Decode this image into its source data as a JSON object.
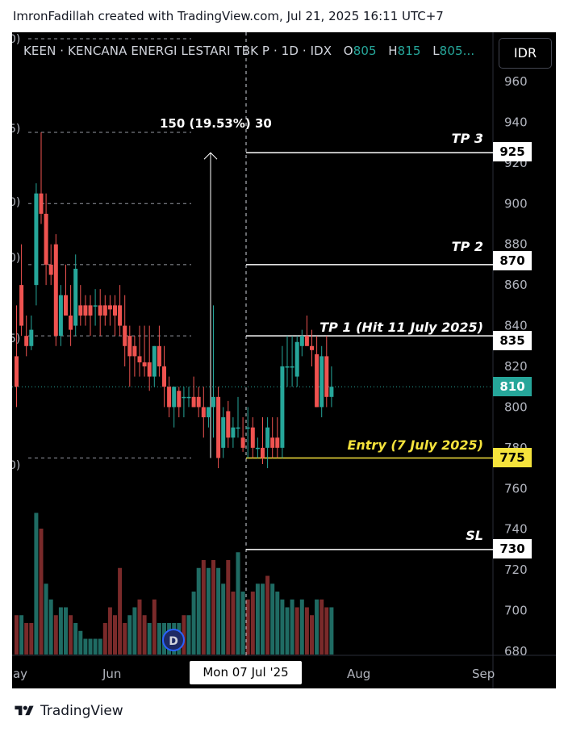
{
  "header": {
    "attribution": "ImronFadillah created with TradingView.com, Jul 21, 2025 16:11 UTC+7"
  },
  "legend": {
    "symbol": "KEEN · KENCANA ENERGI LESTARI TBK P · 1D · IDX",
    "o_label": "O",
    "o_value": "805",
    "h_label": "H",
    "h_value": "815",
    "l_label": "L",
    "l_value": "805..."
  },
  "currency_button": "IDR",
  "levels": {
    "tp3": {
      "label": "TP 3",
      "price": "925"
    },
    "tp2": {
      "label": "TP 2",
      "price": "870"
    },
    "tp1": {
      "label": "TP 1 (Hit 11 July 2025)",
      "price": "835"
    },
    "entry": {
      "label": "Entry (7 July 2025)",
      "price": "775"
    },
    "sl": {
      "label": "SL",
      "price": "730"
    },
    "last": {
      "price": "810"
    }
  },
  "measure_label": "150 (19.53%) 30",
  "crosshair_date": "Mon 07 Jul '25",
  "dividend_badge": "D",
  "footer_brand": "TradingView",
  "colors": {
    "up": "#26a69a",
    "down": "#ef5350",
    "entry": "#f5e33c",
    "background": "#000000"
  },
  "chart_data": {
    "type": "candlestick",
    "y_axis_ticks": [
      960,
      940,
      920,
      900,
      880,
      860,
      840,
      820,
      800,
      780,
      760,
      740,
      720,
      700,
      680
    ],
    "x_axis_ticks": [
      "May",
      "Jun",
      "Aug",
      "Sep"
    ],
    "ylim": [
      676,
      980
    ],
    "left_edge_labels": [
      "0)",
      "5)",
      "0)",
      "0)",
      "5)",
      "0)"
    ],
    "candles": [
      {
        "o": 825,
        "h": 850,
        "l": 800,
        "c": 810
      },
      {
        "o": 860,
        "h": 880,
        "l": 835,
        "c": 840
      },
      {
        "o": 835,
        "h": 845,
        "l": 825,
        "c": 830
      },
      {
        "o": 830,
        "h": 845,
        "l": 828,
        "c": 838
      },
      {
        "o": 860,
        "h": 910,
        "l": 850,
        "c": 905
      },
      {
        "o": 905,
        "h": 935,
        "l": 890,
        "c": 895
      },
      {
        "o": 895,
        "h": 905,
        "l": 860,
        "c": 870
      },
      {
        "o": 870,
        "h": 880,
        "l": 860,
        "c": 865
      },
      {
        "o": 880,
        "h": 885,
        "l": 830,
        "c": 835
      },
      {
        "o": 835,
        "h": 860,
        "l": 830,
        "c": 855
      },
      {
        "o": 855,
        "h": 870,
        "l": 845,
        "c": 845
      },
      {
        "o": 845,
        "h": 860,
        "l": 830,
        "c": 838
      },
      {
        "o": 840,
        "h": 875,
        "l": 835,
        "c": 868
      },
      {
        "o": 850,
        "h": 860,
        "l": 840,
        "c": 845
      },
      {
        "o": 850,
        "h": 855,
        "l": 840,
        "c": 845
      },
      {
        "o": 850,
        "h": 855,
        "l": 835,
        "c": 845
      },
      {
        "o": 850,
        "h": 858,
        "l": 840,
        "c": 850
      },
      {
        "o": 850,
        "h": 858,
        "l": 835,
        "c": 845
      },
      {
        "o": 850,
        "h": 855,
        "l": 840,
        "c": 845
      },
      {
        "o": 850,
        "h": 855,
        "l": 840,
        "c": 848
      },
      {
        "o": 850,
        "h": 855,
        "l": 835,
        "c": 845
      },
      {
        "o": 850,
        "h": 860,
        "l": 835,
        "c": 840
      },
      {
        "o": 840,
        "h": 855,
        "l": 820,
        "c": 830
      },
      {
        "o": 835,
        "h": 840,
        "l": 810,
        "c": 825
      },
      {
        "o": 830,
        "h": 835,
        "l": 815,
        "c": 825
      },
      {
        "o": 825,
        "h": 840,
        "l": 815,
        "c": 822
      },
      {
        "o": 822,
        "h": 840,
        "l": 815,
        "c": 820
      },
      {
        "o": 822,
        "h": 840,
        "l": 808,
        "c": 815
      },
      {
        "o": 815,
        "h": 830,
        "l": 810,
        "c": 830
      },
      {
        "o": 830,
        "h": 840,
        "l": 815,
        "c": 820
      },
      {
        "o": 820,
        "h": 830,
        "l": 800,
        "c": 810
      },
      {
        "o": 810,
        "h": 815,
        "l": 795,
        "c": 800
      },
      {
        "o": 800,
        "h": 810,
        "l": 790,
        "c": 810
      },
      {
        "o": 808,
        "h": 810,
        "l": 795,
        "c": 800
      },
      {
        "o": 805,
        "h": 810,
        "l": 795,
        "c": 805
      },
      {
        "o": 805,
        "h": 810,
        "l": 800,
        "c": 805
      },
      {
        "o": 805,
        "h": 815,
        "l": 800,
        "c": 800
      },
      {
        "o": 805,
        "h": 810,
        "l": 795,
        "c": 800
      },
      {
        "o": 800,
        "h": 810,
        "l": 785,
        "c": 795
      },
      {
        "o": 795,
        "h": 800,
        "l": 790,
        "c": 800
      },
      {
        "o": 800,
        "h": 850,
        "l": 785,
        "c": 805
      },
      {
        "o": 805,
        "h": 810,
        "l": 770,
        "c": 775
      },
      {
        "o": 780,
        "h": 800,
        "l": 775,
        "c": 795
      },
      {
        "o": 798,
        "h": 803,
        "l": 780,
        "c": 785
      },
      {
        "o": 785,
        "h": 795,
        "l": 780,
        "c": 790
      },
      {
        "o": 790,
        "h": 805,
        "l": 785,
        "c": 790
      },
      {
        "o": 785,
        "h": 795,
        "l": 778,
        "c": 780
      },
      {
        "o": 790,
        "h": 800,
        "l": 775,
        "c": 790
      },
      {
        "o": 790,
        "h": 795,
        "l": 775,
        "c": 780
      },
      {
        "o": 780,
        "h": 785,
        "l": 775,
        "c": 780
      },
      {
        "o": 780,
        "h": 795,
        "l": 772,
        "c": 775
      },
      {
        "o": 780,
        "h": 795,
        "l": 770,
        "c": 790
      },
      {
        "o": 785,
        "h": 795,
        "l": 775,
        "c": 780
      },
      {
        "o": 785,
        "h": 795,
        "l": 775,
        "c": 780
      },
      {
        "o": 780,
        "h": 830,
        "l": 775,
        "c": 820
      },
      {
        "o": 820,
        "h": 835,
        "l": 810,
        "c": 820
      },
      {
        "o": 820,
        "h": 835,
        "l": 810,
        "c": 820
      },
      {
        "o": 815,
        "h": 835,
        "l": 810,
        "c": 832
      },
      {
        "o": 830,
        "h": 838,
        "l": 825,
        "c": 835
      },
      {
        "o": 835,
        "h": 845,
        "l": 830,
        "c": 830
      },
      {
        "o": 830,
        "h": 838,
        "l": 820,
        "c": 828
      },
      {
        "o": 826,
        "h": 835,
        "l": 800,
        "c": 800
      },
      {
        "o": 800,
        "h": 830,
        "l": 795,
        "c": 825
      },
      {
        "o": 825,
        "h": 835,
        "l": 800,
        "c": 805
      },
      {
        "o": 805,
        "h": 820,
        "l": 800,
        "c": 810
      }
    ],
    "volume": [
      [
        0.25,
        "down"
      ],
      [
        0.25,
        "up"
      ],
      [
        0.2,
        "down"
      ],
      [
        0.2,
        "down"
      ],
      [
        0.9,
        "up"
      ],
      [
        0.8,
        "down"
      ],
      [
        0.45,
        "up"
      ],
      [
        0.35,
        "up"
      ],
      [
        0.25,
        "down"
      ],
      [
        0.3,
        "up"
      ],
      [
        0.3,
        "up"
      ],
      [
        0.25,
        "down"
      ],
      [
        0.2,
        "up"
      ],
      [
        0.15,
        "up"
      ],
      [
        0.1,
        "up"
      ],
      [
        0.1,
        "up"
      ],
      [
        0.1,
        "up"
      ],
      [
        0.1,
        "up"
      ],
      [
        0.2,
        "down"
      ],
      [
        0.3,
        "down"
      ],
      [
        0.25,
        "down"
      ],
      [
        0.55,
        "down"
      ],
      [
        0.2,
        "down"
      ],
      [
        0.25,
        "up"
      ],
      [
        0.3,
        "up"
      ],
      [
        0.35,
        "down"
      ],
      [
        0.25,
        "down"
      ],
      [
        0.2,
        "up"
      ],
      [
        0.35,
        "down"
      ],
      [
        0.2,
        "up"
      ],
      [
        0.2,
        "up"
      ],
      [
        0.2,
        "up"
      ],
      [
        0.2,
        "up"
      ],
      [
        0.2,
        "up"
      ],
      [
        0.25,
        "down"
      ],
      [
        0.25,
        "up"
      ],
      [
        0.4,
        "up"
      ],
      [
        0.55,
        "up"
      ],
      [
        0.6,
        "down"
      ],
      [
        0.55,
        "up"
      ],
      [
        0.6,
        "down"
      ],
      [
        0.55,
        "up"
      ],
      [
        0.45,
        "up"
      ],
      [
        0.6,
        "down"
      ],
      [
        0.4,
        "down"
      ],
      [
        0.65,
        "up"
      ],
      [
        0.4,
        "up"
      ],
      [
        0.35,
        "down"
      ],
      [
        0.4,
        "down"
      ],
      [
        0.45,
        "up"
      ],
      [
        0.45,
        "up"
      ],
      [
        0.5,
        "down"
      ],
      [
        0.45,
        "up"
      ],
      [
        0.4,
        "up"
      ],
      [
        0.35,
        "up"
      ],
      [
        0.3,
        "up"
      ],
      [
        0.35,
        "up"
      ],
      [
        0.3,
        "down"
      ],
      [
        0.35,
        "up"
      ],
      [
        0.3,
        "down"
      ],
      [
        0.25,
        "down"
      ],
      [
        0.35,
        "up"
      ],
      [
        0.35,
        "down"
      ],
      [
        0.3,
        "down"
      ],
      [
        0.3,
        "up"
      ]
    ]
  }
}
